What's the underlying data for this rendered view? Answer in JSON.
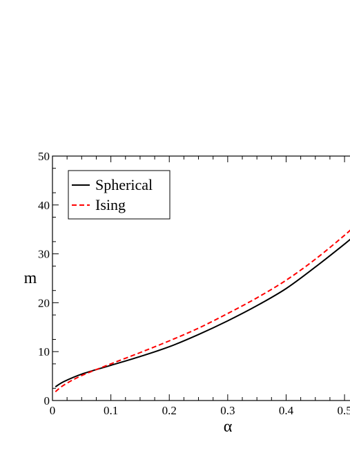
{
  "chart_data": {
    "type": "line",
    "title": "",
    "xlabel": "α",
    "ylabel": "m",
    "xlim": [
      0,
      0.52
    ],
    "ylim": [
      0,
      50
    ],
    "x_ticks": [
      0,
      0.1,
      0.2,
      0.3,
      0.4,
      0.5
    ],
    "x_tick_labels": [
      "0",
      "0.1",
      "0.2",
      "0.3",
      "0.4",
      "0.5"
    ],
    "y_ticks": [
      0,
      10,
      20,
      30,
      40,
      50
    ],
    "y_tick_labels": [
      "0",
      "10",
      "20",
      "30",
      "40",
      "50"
    ],
    "grid": false,
    "legend_position": "top-left",
    "series": [
      {
        "name": "Spherical",
        "color": "#000000",
        "dash": "solid",
        "x": [
          0.005,
          0.02,
          0.05,
          0.1,
          0.15,
          0.2,
          0.25,
          0.3,
          0.35,
          0.4,
          0.45,
          0.5,
          0.52
        ],
        "y": [
          2.8,
          3.9,
          5.4,
          7.2,
          9.0,
          11.0,
          13.5,
          16.3,
          19.4,
          22.9,
          27.3,
          32.0,
          34.0
        ]
      },
      {
        "name": "Ising",
        "color": "#ff0000",
        "dash": "dashed",
        "x": [
          0.005,
          0.02,
          0.05,
          0.1,
          0.15,
          0.2,
          0.25,
          0.3,
          0.35,
          0.4,
          0.45,
          0.5,
          0.52
        ],
        "y": [
          1.8,
          3.2,
          5.1,
          7.5,
          9.8,
          12.2,
          14.8,
          17.8,
          21.0,
          24.6,
          28.9,
          33.8,
          36.0
        ]
      }
    ]
  }
}
